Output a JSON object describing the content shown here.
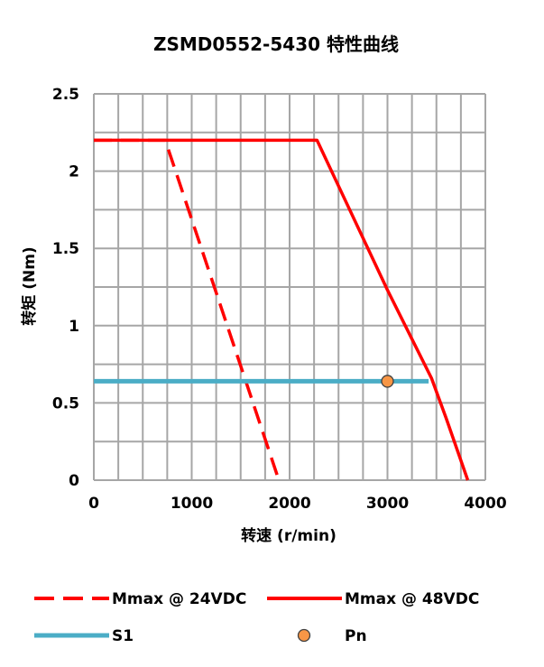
{
  "chart_data": {
    "type": "line",
    "title": "ZSMD0552-5430 特性曲线",
    "xlabel": "转速 (r/min)",
    "ylabel": "转矩 (Nm)",
    "xlim": [
      0,
      4000
    ],
    "ylim": [
      0,
      2.5
    ],
    "xticks": [
      "0",
      "1000",
      "2000",
      "3000",
      "4000"
    ],
    "yticks": [
      "0",
      "0.5",
      "1",
      "1.5",
      "2",
      "2.5"
    ],
    "grid": true,
    "legend_position": "bottom",
    "series": [
      {
        "name": "Mmax @ 24VDC",
        "style": "dashed",
        "color": "#ff0000",
        "points": [
          [
            0,
            2.2
          ],
          [
            730,
            2.2
          ],
          [
            1890,
            0.0
          ]
        ]
      },
      {
        "name": "Mmax @ 48VDC",
        "style": "solid",
        "color": "#ff0000",
        "points": [
          [
            0,
            2.2
          ],
          [
            2280,
            2.2
          ],
          [
            3000,
            1.23
          ],
          [
            3450,
            0.66
          ],
          [
            3600,
            0.4
          ],
          [
            3820,
            0.0
          ]
        ]
      },
      {
        "name": "S1",
        "style": "solid",
        "color": "#4badc6",
        "points": [
          [
            0,
            0.64
          ],
          [
            3420,
            0.64
          ]
        ]
      },
      {
        "name": "Pn",
        "style": "marker",
        "color": "#f79646",
        "points": [
          [
            3000,
            0.64
          ]
        ]
      }
    ]
  }
}
